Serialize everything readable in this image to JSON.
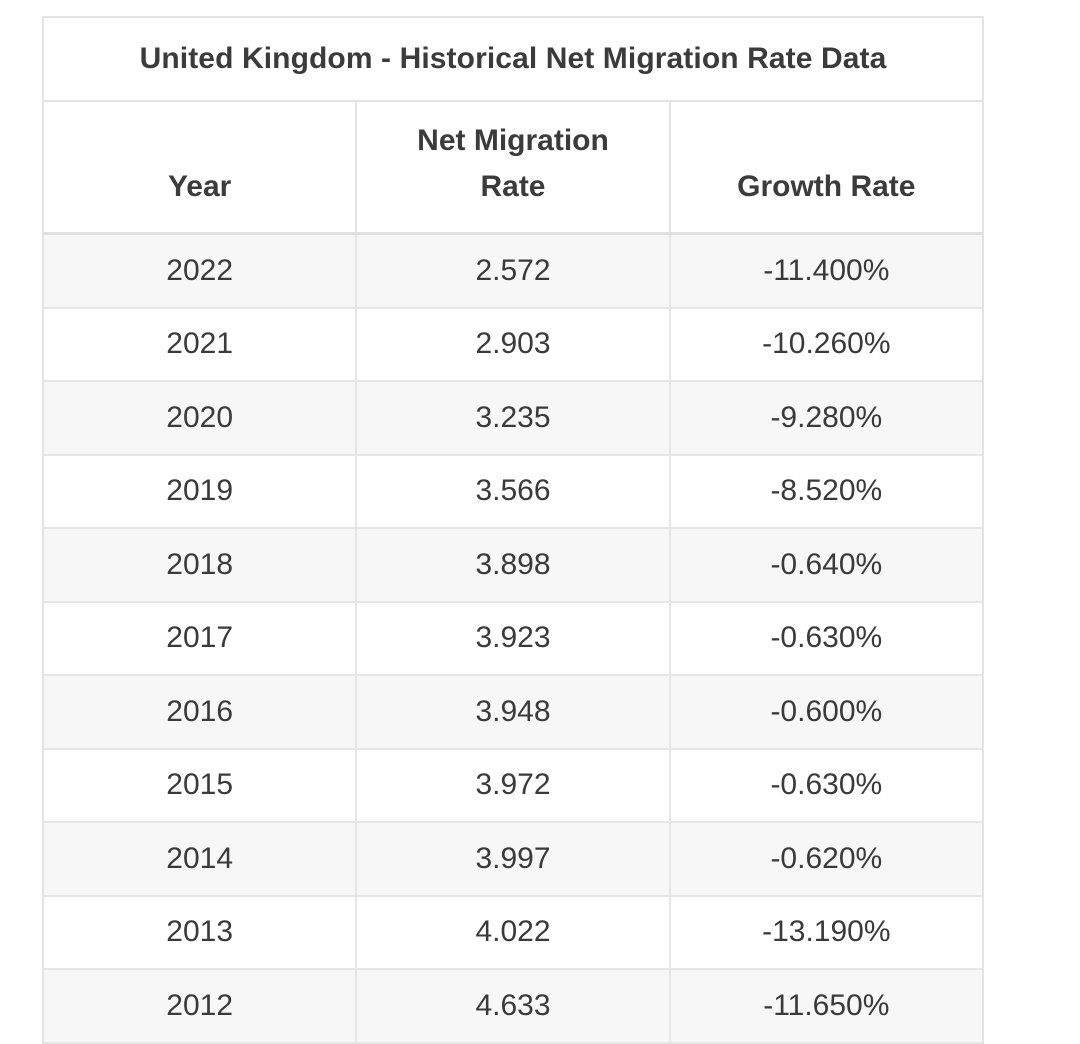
{
  "chart_data": {
    "type": "table",
    "title": "United Kingdom - Historical Net Migration Rate Data",
    "columns": [
      {
        "lines": [
          "Year"
        ]
      },
      {
        "lines": [
          "Net Migration",
          "Rate"
        ]
      },
      {
        "lines": [
          "Growth Rate"
        ]
      }
    ],
    "rows": [
      [
        "2022",
        "2.572",
        "-11.400%"
      ],
      [
        "2021",
        "2.903",
        "-10.260%"
      ],
      [
        "2020",
        "3.235",
        "-9.280%"
      ],
      [
        "2019",
        "3.566",
        "-8.520%"
      ],
      [
        "2018",
        "3.898",
        "-0.640%"
      ],
      [
        "2017",
        "3.923",
        "-0.630%"
      ],
      [
        "2016",
        "3.948",
        "-0.600%"
      ],
      [
        "2015",
        "3.972",
        "-0.630%"
      ],
      [
        "2014",
        "3.997",
        "-0.620%"
      ],
      [
        "2013",
        "4.022",
        "-13.190%"
      ],
      [
        "2012",
        "4.633",
        "-11.650%"
      ]
    ]
  }
}
